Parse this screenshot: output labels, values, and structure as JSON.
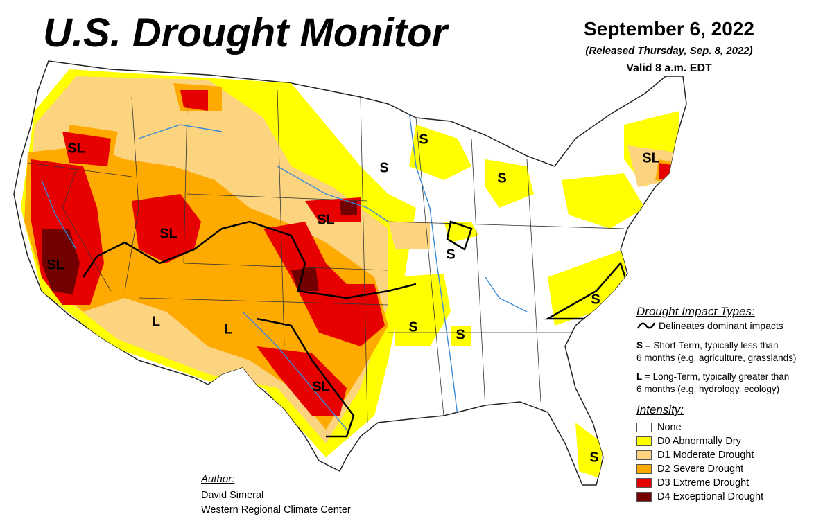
{
  "title": "U.S. Drought Monitor",
  "date": "September 6, 2022",
  "released": "(Released Thursday, Sep. 8, 2022)",
  "valid": "Valid 8 a.m. EDT",
  "region_labels": {
    "sl_oregon": "SL",
    "sl_utah": "SL",
    "sl_california": "SL",
    "l_arizona": "L",
    "l_new_mexico": "L",
    "sl_texas": "SL",
    "sl_nebraska": "SL",
    "s_wisconsin": "S",
    "s_minnesota": "S",
    "s_michigan": "S",
    "s_illinois": "S",
    "sl_new_england": "SL",
    "s_north_carolina": "S",
    "s_arkansas": "S",
    "s_mississippi": "S",
    "s_florida": "S"
  },
  "impact_legend": {
    "title": "Drought Impact Types:",
    "line_label": "Delineates dominant impacts",
    "short_code": "S",
    "short_text": " = Short-Term, typically less than",
    "short_text2": "6 months (e.g. agriculture, grasslands)",
    "long_code": "L",
    "long_text": " = Long-Term, typically greater than",
    "long_text2": "6 months (e.g. hydrology, ecology)"
  },
  "intensity_legend": {
    "title": "Intensity:",
    "items": [
      {
        "label": "None",
        "color": "#ffffff"
      },
      {
        "label": "D0 Abnormally Dry",
        "color": "#ffff00"
      },
      {
        "label": "D1 Moderate Drought",
        "color": "#fcd37f"
      },
      {
        "label": "D2 Severe Drought",
        "color": "#ffaa00"
      },
      {
        "label": "D3 Extreme Drought",
        "color": "#e60000"
      },
      {
        "label": "D4 Exceptional Drought",
        "color": "#730000"
      }
    ]
  },
  "author": {
    "title": "Author:",
    "name": "David Simeral",
    "org": "Western Regional Climate Center"
  }
}
